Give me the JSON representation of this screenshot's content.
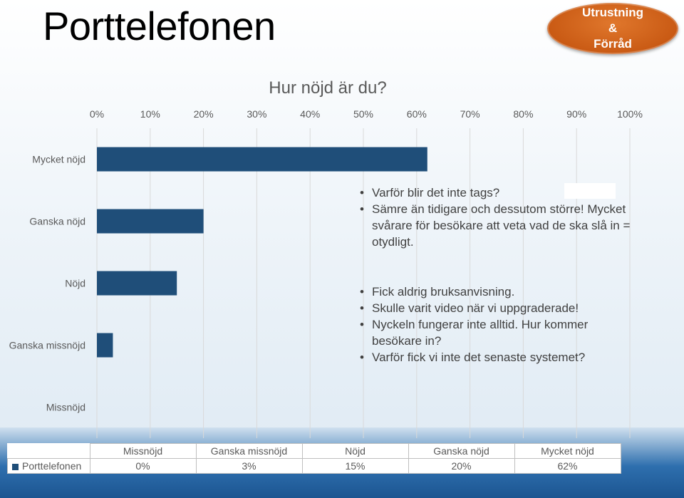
{
  "slide": {
    "title": "Porttelefonen",
    "badge_line1": "Utrustning",
    "badge_line2": "&",
    "badge_line3": "Förråd",
    "badge_color": "#c95a14"
  },
  "chart_data": {
    "type": "bar",
    "orientation": "horizontal",
    "title": "Hur nöjd är du?",
    "categories": [
      "Mycket nöjd",
      "Ganska nöjd",
      "Nöjd",
      "Ganska missnöjd",
      "Missnöjd"
    ],
    "series": [
      {
        "name": "Porttelefonen",
        "values": [
          0.62,
          0.2,
          0.15,
          0.03,
          0.0
        ],
        "color": "#1f4e79"
      }
    ],
    "xlim": [
      0,
      1
    ],
    "x_ticks": [
      "0%",
      "10%",
      "20%",
      "30%",
      "40%",
      "50%",
      "60%",
      "70%",
      "80%",
      "90%",
      "100%"
    ],
    "x_axis_position": "top",
    "grid": true,
    "legend": "data-table"
  },
  "data_table": {
    "headers": [
      "Missnöjd",
      "Ganska missnöjd",
      "Nöjd",
      "Ganska nöjd",
      "Mycket nöjd"
    ],
    "row_label": "Porttelefonen",
    "values": [
      "0%",
      "3%",
      "15%",
      "20%",
      "62%"
    ]
  },
  "comments": {
    "group1": [
      "Varför blir det inte tags?",
      "Sämre än tidigare och dessutom större! Mycket svårare för besökare att veta vad de ska slå in = otydligt."
    ],
    "group2": [
      "Fick aldrig bruksanvisning.",
      "Skulle varit video när vi uppgraderade!",
      "Nyckeln fungerar inte alltid. Hur kommer besökare in?",
      "Varför fick vi inte det senaste systemet?"
    ]
  }
}
